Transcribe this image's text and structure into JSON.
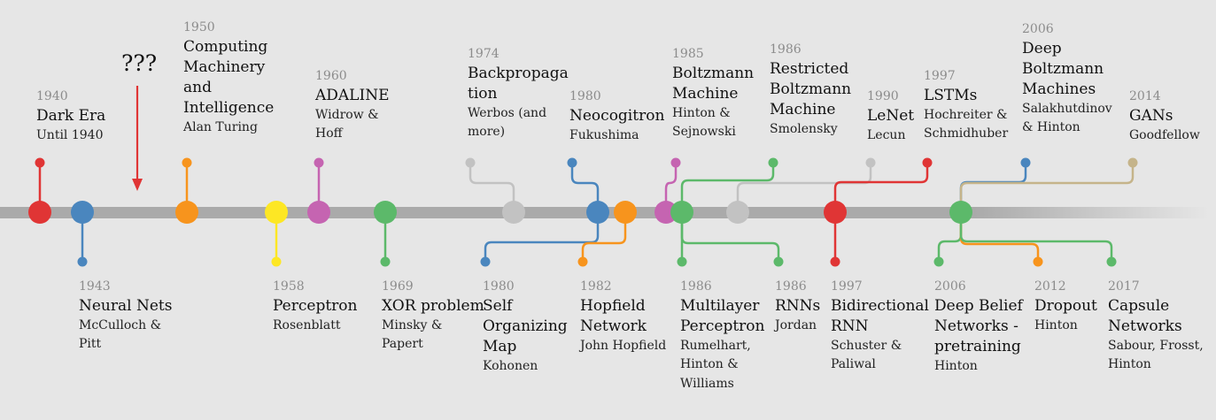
{
  "question_mark": "???",
  "colors": {
    "red": "#e03535",
    "blue": "#4a86be",
    "orange": "#f7941d",
    "yellow": "#fde724",
    "magenta": "#c564b1",
    "green": "#5cb96a",
    "gray": "#c2c2c2",
    "tan": "#c5b48a",
    "timeline": "#aaaaaa",
    "background": "#e6e6e6"
  },
  "events_top": [
    {
      "id": "dark-era",
      "year": "1940",
      "title": "Dark Era",
      "authors": "Until 1940"
    },
    {
      "id": "computing-machinery",
      "year": "1950",
      "title": "Computing\nMachinery\nand\nIntelligence",
      "authors": "Alan Turing"
    },
    {
      "id": "adaline",
      "year": "1960",
      "title": "ADALINE",
      "authors": "Widrow &\nHoff"
    },
    {
      "id": "backpropagation",
      "year": "1974",
      "title": "Backpropaga\ntion",
      "authors": "Werbos (and\nmore)"
    },
    {
      "id": "neocogitron",
      "year": "1980",
      "title": "Neocogitron",
      "authors": "Fukushima"
    },
    {
      "id": "boltzmann-machine",
      "year": "1985",
      "title": "Boltzmann\nMachine",
      "authors": "Hinton &\nSejnowski"
    },
    {
      "id": "restricted-boltzmann",
      "year": "1986",
      "title": "Restricted\nBoltzmann\nMachine",
      "authors": "Smolensky"
    },
    {
      "id": "lenet",
      "year": "1990",
      "title": "LeNet",
      "authors": "Lecun"
    },
    {
      "id": "lstms",
      "year": "1997",
      "title": "LSTMs",
      "authors": "Hochreiter &\nSchmidhuber"
    },
    {
      "id": "deep-boltzmann",
      "year": "2006",
      "title": "Deep\nBoltzmann\nMachines",
      "authors": "Salakhutdinov\n& Hinton"
    },
    {
      "id": "gans",
      "year": "2014",
      "title": "GANs",
      "authors": "Goodfellow"
    }
  ],
  "events_bottom": [
    {
      "id": "neural-nets",
      "year": "1943",
      "title": "Neural Nets",
      "authors": "McCulloch &\nPitt"
    },
    {
      "id": "perceptron",
      "year": "1958",
      "title": "Perceptron",
      "authors": "Rosenblatt"
    },
    {
      "id": "xor-problem",
      "year": "1969",
      "title": "XOR problem",
      "authors": "Minsky &\nPapert"
    },
    {
      "id": "self-organizing-map",
      "year": "1980",
      "title": "Self\nOrganizing\nMap",
      "authors": "Kohonen"
    },
    {
      "id": "hopfield-network",
      "year": "1982",
      "title": "Hopfield\nNetwork",
      "authors": "John Hopfield"
    },
    {
      "id": "multilayer-perceptron",
      "year": "1986",
      "title": "Multilayer\nPerceptron",
      "authors": "Rumelhart,\nHinton &\nWilliams"
    },
    {
      "id": "rnns",
      "year": "1986",
      "title": "RNNs",
      "authors": "Jordan"
    },
    {
      "id": "bidirectional-rnn",
      "year": "1997",
      "title": "Bidirectional\nRNN",
      "authors": "Schuster &\nPaliwal"
    },
    {
      "id": "deep-belief-networks",
      "year": "2006",
      "title": "Deep Belief\nNetworks -\npretraining",
      "authors": "Hinton"
    },
    {
      "id": "dropout",
      "year": "2012",
      "title": "Dropout",
      "authors": "Hinton"
    },
    {
      "id": "capsule-networks",
      "year": "2017",
      "title": "Capsule\nNetworks",
      "authors": "Sabour, Frosst,\nHinton"
    }
  ]
}
